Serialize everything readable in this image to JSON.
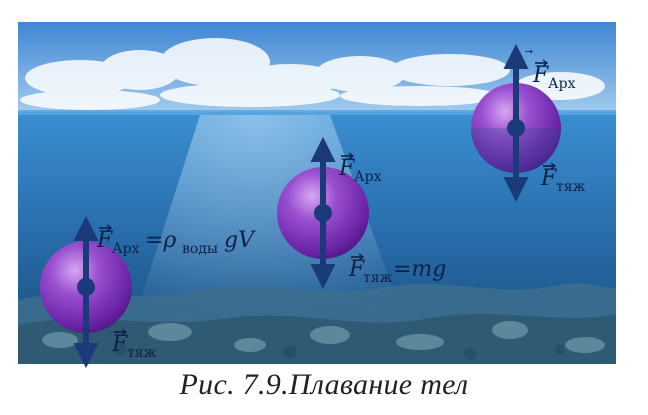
{
  "caption": "Рис. 7.9.Плавание тел",
  "labels": {
    "f_arch_main": "F",
    "sub_arch": "Арх",
    "f_grav_main": "F",
    "sub_grav": "тяж",
    "formula_arch_mid": "=ρ",
    "sub_water": "воды",
    "formula_arch_tail": "gV",
    "formula_grav": "=mg"
  },
  "colors": {
    "sky_top": "#4a8fd6",
    "sky_bottom": "#9cc9ef",
    "water_top": "#2f7fc2",
    "water_bottom": "#0f3f6c",
    "sphere": "#8a3fc1",
    "arrow": "#1a3a7a"
  }
}
